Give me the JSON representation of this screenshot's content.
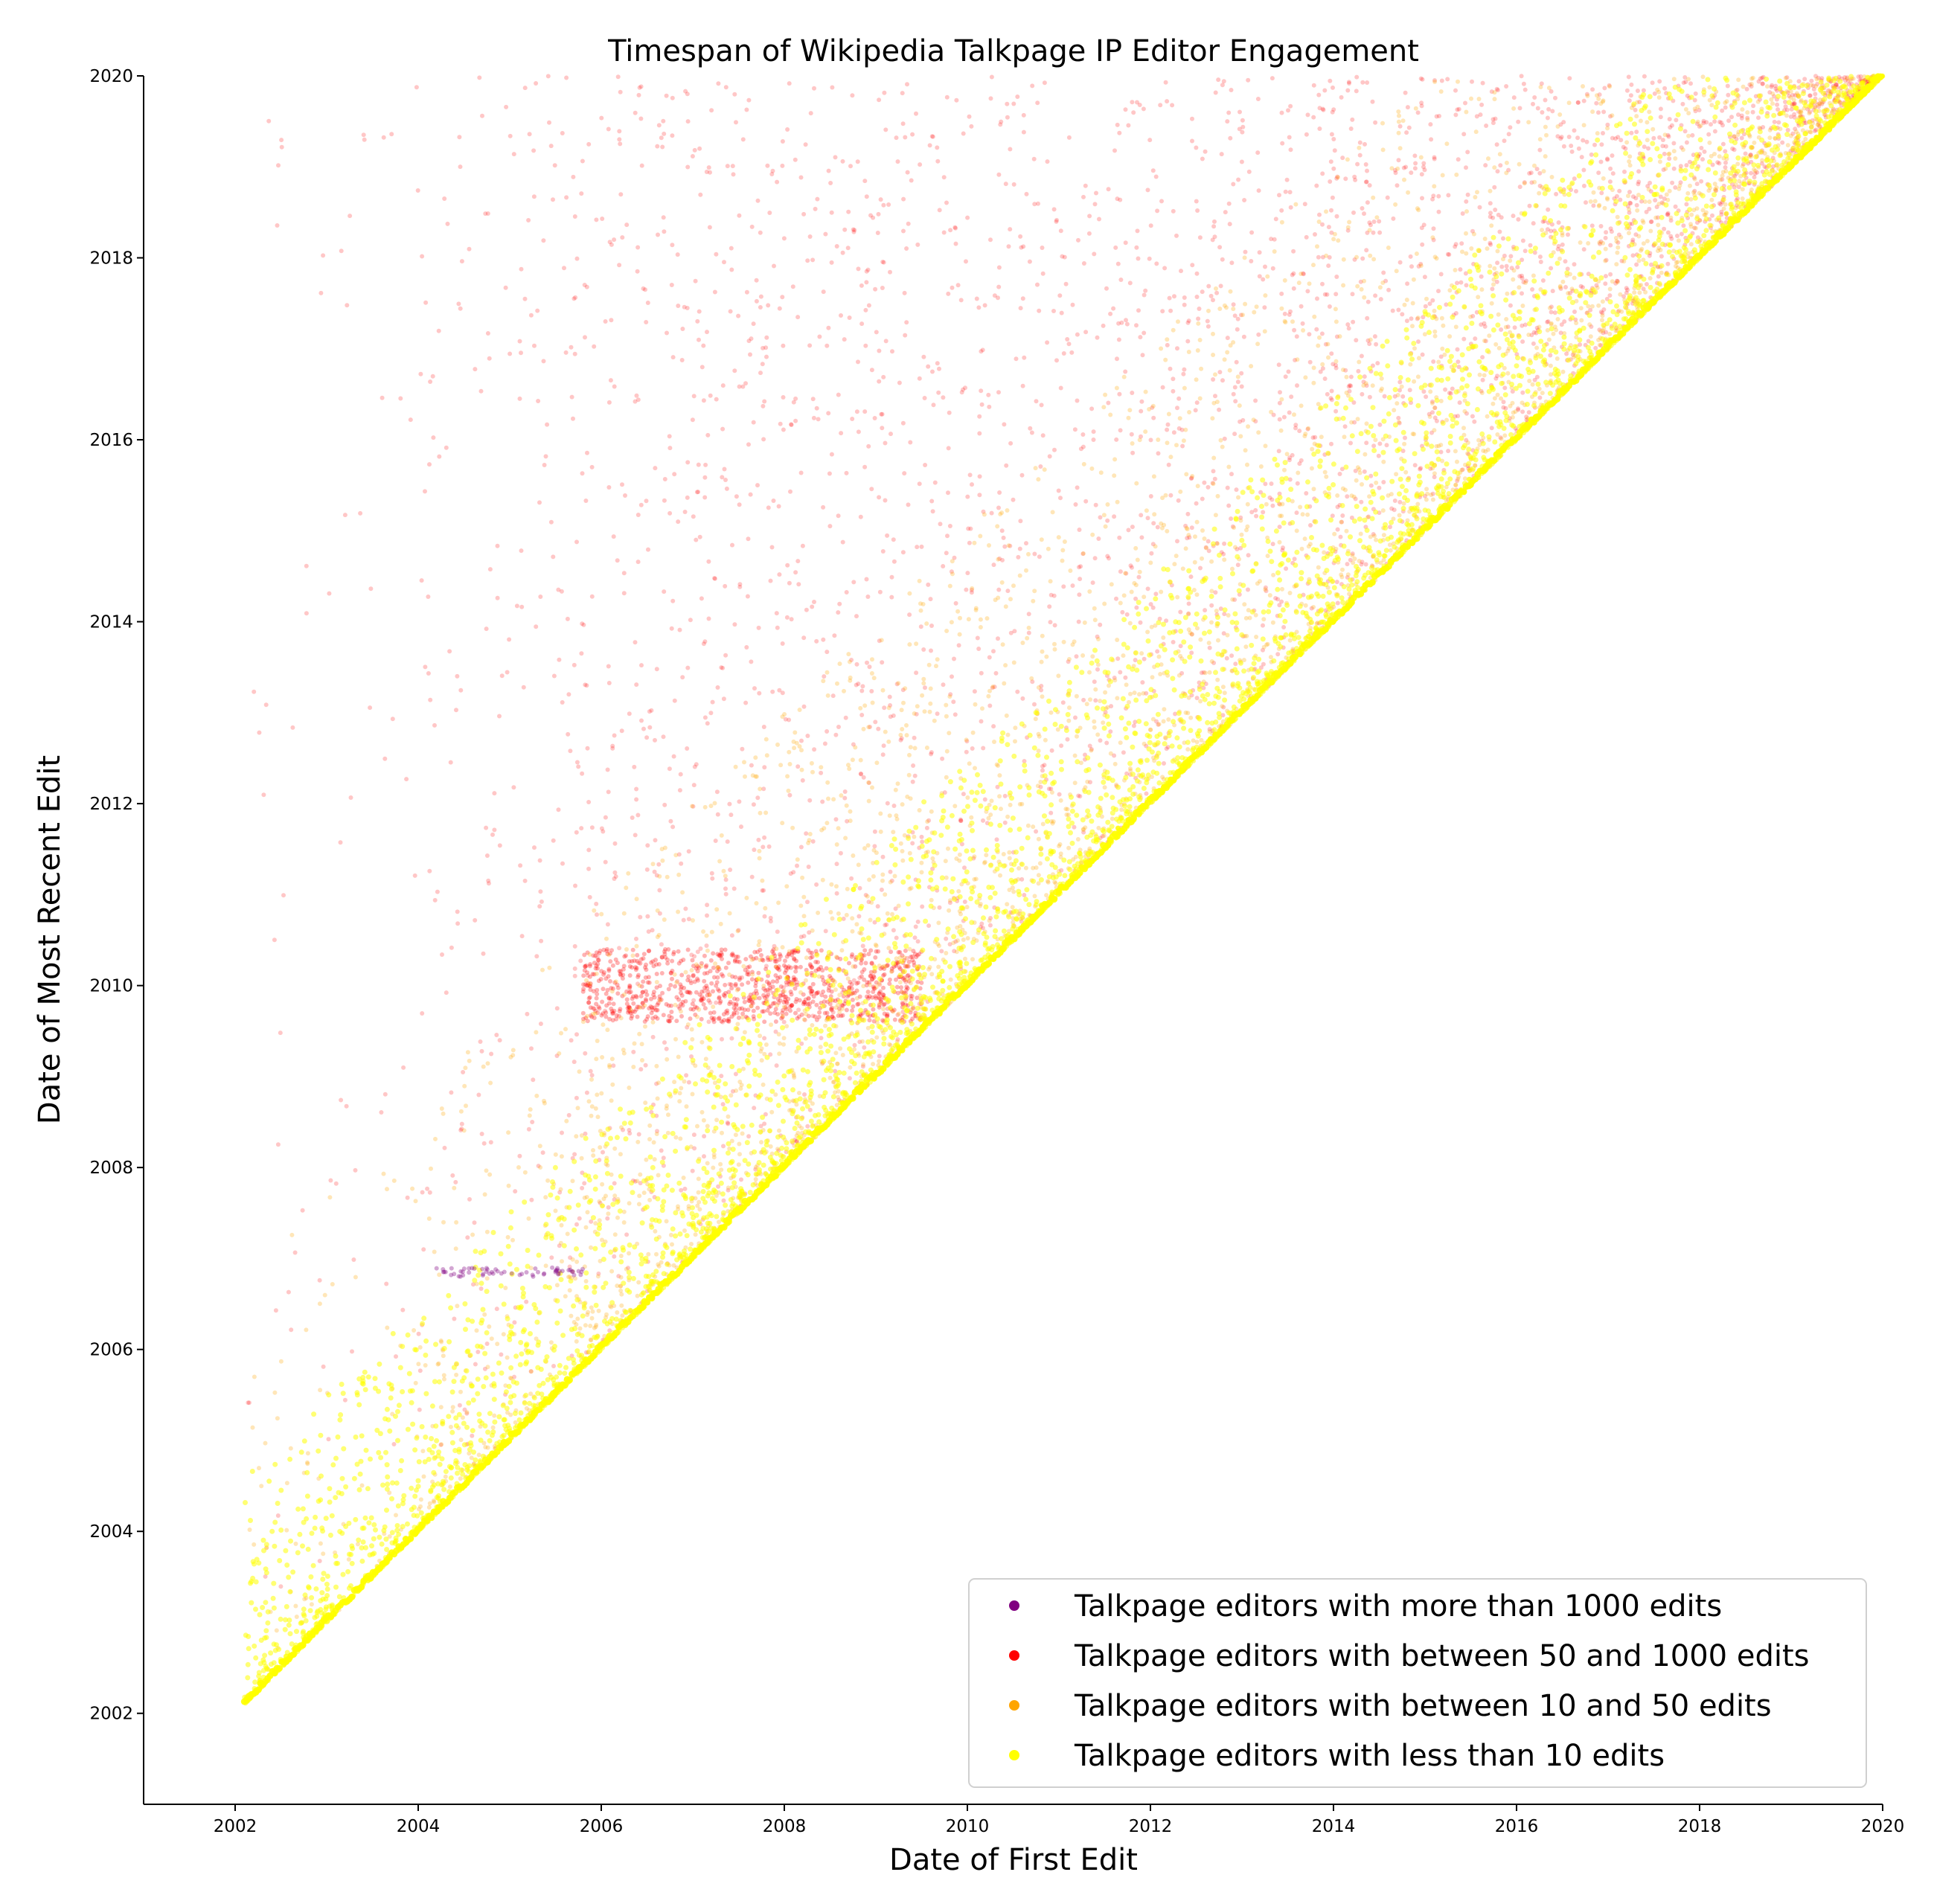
{
  "chart_data": {
    "type": "scatter",
    "title": "Timespan of Wikipedia Talkpage IP Editor Engagement",
    "xlabel": "Date of First Edit",
    "ylabel": "Date of Most Recent Edit",
    "xlim": [
      2001,
      2020
    ],
    "ylim": [
      2001,
      2020
    ],
    "x_ticks": [
      "2002",
      "2004",
      "2006",
      "2008",
      "2010",
      "2012",
      "2014",
      "2016",
      "2018",
      "2020"
    ],
    "y_ticks": [
      "2002",
      "2004",
      "2006",
      "2008",
      "2010",
      "2012",
      "2014",
      "2016",
      "2018",
      "2020"
    ],
    "grid": false,
    "legend_position": "lower-right",
    "series": [
      {
        "name": "Talkpage editors with more than 1000 edits",
        "color": "#800080",
        "point_density": "very sparse",
        "x_range": [
          2004.2,
          2005.8
        ],
        "y_range": [
          2006.8,
          2006.9
        ]
      },
      {
        "name": "Talkpage editors with between 50 and 1000 edits",
        "color": "#ff0000",
        "point_density": "dense",
        "x_range": [
          2002.1,
          2020
        ],
        "y_range": [
          2002.1,
          2020
        ]
      },
      {
        "name": "Talkpage editors with between 10 and 50 edits",
        "color": "#ffa500",
        "point_density": "dense",
        "x_range": [
          2002.1,
          2020
        ],
        "y_range": [
          2002.1,
          2020
        ]
      },
      {
        "name": "Talkpage editors with less than 10 edits",
        "color": "#ffff00",
        "point_density": "very dense",
        "x_range": [
          2002.1,
          2020
        ],
        "y_range": [
          2002.1,
          2020
        ]
      }
    ]
  }
}
